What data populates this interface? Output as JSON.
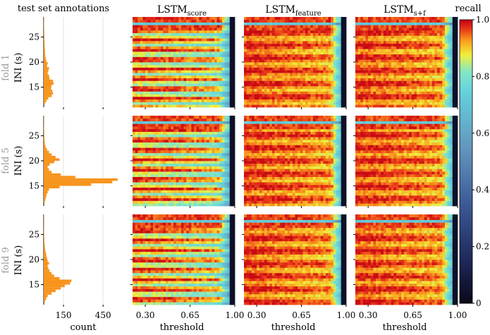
{
  "chart_data": {
    "type": "heatmap",
    "histogram": {
      "title": "test set annotations",
      "xlabel": "count",
      "xticks": [
        150,
        450
      ],
      "xlim": [
        0,
        620
      ],
      "ylabel": "INI (s)",
      "yticks": [
        15,
        20,
        25
      ],
      "ylim": [
        11,
        29
      ],
      "bar_color": "#f7941d"
    },
    "folds": [
      {
        "label": "fold 1",
        "ini_bins": [
          11.5,
          12.0,
          12.5,
          13.0,
          13.5,
          14.0,
          14.5,
          15.0,
          15.5,
          16.0,
          16.5,
          17.0,
          17.5,
          18.0,
          18.5,
          19.0,
          19.5,
          20.0,
          20.5,
          21.0,
          21.5,
          22.0,
          22.5,
          23.0,
          23.5,
          24.0,
          24.5,
          25.0,
          25.5,
          26.0,
          26.5,
          27.0,
          27.5,
          28.0,
          28.5
        ],
        "counts": [
          10,
          20,
          35,
          60,
          70,
          65,
          55,
          60,
          75,
          70,
          45,
          40,
          30,
          35,
          40,
          25,
          30,
          20,
          15,
          12,
          10,
          10,
          8,
          8,
          6,
          6,
          5,
          5,
          4,
          4,
          3,
          3,
          3,
          2,
          2
        ]
      },
      {
        "label": "fold 5",
        "ini_bins": [
          11.5,
          12.0,
          12.5,
          13.0,
          13.5,
          14.0,
          14.5,
          15.0,
          15.5,
          16.0,
          16.5,
          17.0,
          17.5,
          18.0,
          18.5,
          19.0,
          19.5,
          20.0,
          20.5,
          21.0,
          21.5,
          22.0,
          22.5,
          23.0,
          23.5,
          24.0,
          24.5,
          25.0,
          25.5,
          26.0,
          26.5,
          27.0,
          27.5,
          28.0,
          28.5
        ],
        "counts": [
          8,
          12,
          18,
          22,
          30,
          40,
          120,
          360,
          520,
          560,
          240,
          130,
          60,
          40,
          30,
          45,
          80,
          120,
          90,
          60,
          40,
          25,
          15,
          10,
          8,
          6,
          5,
          4,
          4,
          3,
          3,
          2,
          2,
          2,
          2
        ]
      },
      {
        "label": "fold 9",
        "ini_bins": [
          11.5,
          12.0,
          12.5,
          13.0,
          13.5,
          14.0,
          14.5,
          15.0,
          15.5,
          16.0,
          16.5,
          17.0,
          17.5,
          18.0,
          18.5,
          19.0,
          19.5,
          20.0,
          20.5,
          21.0,
          21.5,
          22.0,
          22.5,
          23.0,
          23.5,
          24.0,
          24.5,
          25.0,
          25.5,
          26.0,
          26.5,
          27.0,
          27.5,
          28.0,
          28.5
        ],
        "counts": [
          12,
          20,
          30,
          60,
          90,
          130,
          160,
          200,
          210,
          120,
          80,
          60,
          45,
          35,
          30,
          40,
          30,
          25,
          20,
          18,
          12,
          10,
          8,
          6,
          5,
          5,
          4,
          3,
          3,
          3,
          2,
          2,
          2,
          2,
          2
        ]
      }
    ],
    "heatmaps": {
      "columns": [
        {
          "title_main": "LSTM",
          "title_sub": "score",
          "method": "score"
        },
        {
          "title_main": "LSTM",
          "title_sub": "feature",
          "method": "feature"
        },
        {
          "title_main": "LSTM",
          "title_sub": "s+f",
          "method": "sf"
        }
      ],
      "xlabel": "threshold",
      "xticks": [
        0.3,
        0.65,
        1.0
      ],
      "xtick_labels": [
        "0.30",
        "0.65",
        "1.00"
      ],
      "xlim": [
        0.2,
        1.0
      ],
      "ylim": [
        11,
        29
      ],
      "rows": 34,
      "value": "recall"
    },
    "colorbar": {
      "label": "recall",
      "ticks": [
        0,
        0.2,
        0.4,
        0.6,
        0.8,
        1.0
      ],
      "tick_labels": [
        "0",
        "0.2",
        "0.4",
        "0.6",
        "0.8",
        "1.0"
      ],
      "range": [
        0,
        1
      ],
      "colormap": "jet"
    }
  }
}
